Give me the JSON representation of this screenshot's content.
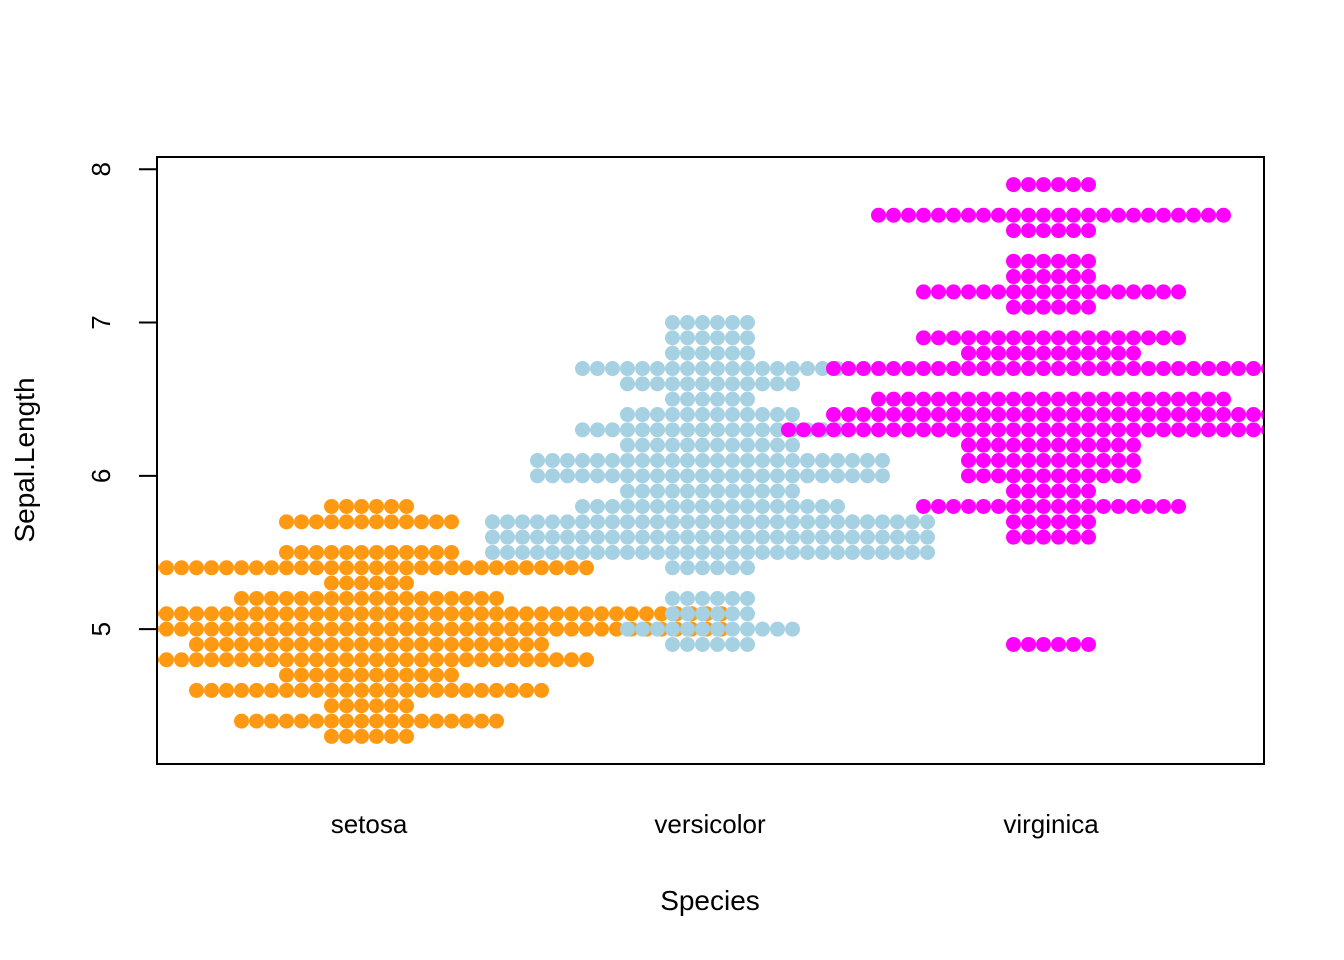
{
  "chart_data": {
    "type": "scatter",
    "subtype": "beeswarm",
    "xlabel": "Species",
    "ylabel": "Sepal.Length",
    "ylim": [
      4.12,
      8.08
    ],
    "yticks": [
      "5",
      "6",
      "7",
      "8"
    ],
    "grid": false,
    "legend": "none",
    "categories": [
      "setosa",
      "versicolor",
      "virginica"
    ],
    "series": [
      {
        "category": "setosa",
        "color": "#FF9912",
        "counts": {
          "4.3": 1,
          "4.4": 3,
          "4.5": 1,
          "4.6": 4,
          "4.7": 2,
          "4.8": 5,
          "4.9": 4,
          "5.0": 8,
          "5.1": 8,
          "5.2": 3,
          "5.3": 1,
          "5.4": 5,
          "5.5": 2,
          "5.7": 2,
          "5.8": 1
        }
      },
      {
        "category": "versicolor",
        "color": "#A6D1E3",
        "counts": {
          "4.9": 1,
          "5.0": 2,
          "5.1": 1,
          "5.2": 1,
          "5.4": 1,
          "5.5": 5,
          "5.6": 5,
          "5.7": 5,
          "5.8": 3,
          "5.9": 2,
          "6.0": 4,
          "6.1": 4,
          "6.2": 2,
          "6.3": 3,
          "6.4": 2,
          "6.5": 1,
          "6.6": 2,
          "6.7": 3,
          "6.8": 1,
          "6.9": 1,
          "7.0": 1
        }
      },
      {
        "category": "virginica",
        "color": "#FF00FF",
        "counts": {
          "4.9": 1,
          "5.6": 1,
          "5.7": 1,
          "5.8": 3,
          "5.9": 1,
          "6.0": 2,
          "6.1": 2,
          "6.2": 2,
          "6.3": 6,
          "6.4": 5,
          "6.5": 4,
          "6.7": 5,
          "6.8": 2,
          "6.9": 3,
          "7.0": 0,
          "7.1": 1,
          "7.2": 3,
          "7.3": 1,
          "7.4": 1,
          "7.6": 1,
          "7.7": 4,
          "7.9": 1
        }
      }
    ]
  }
}
